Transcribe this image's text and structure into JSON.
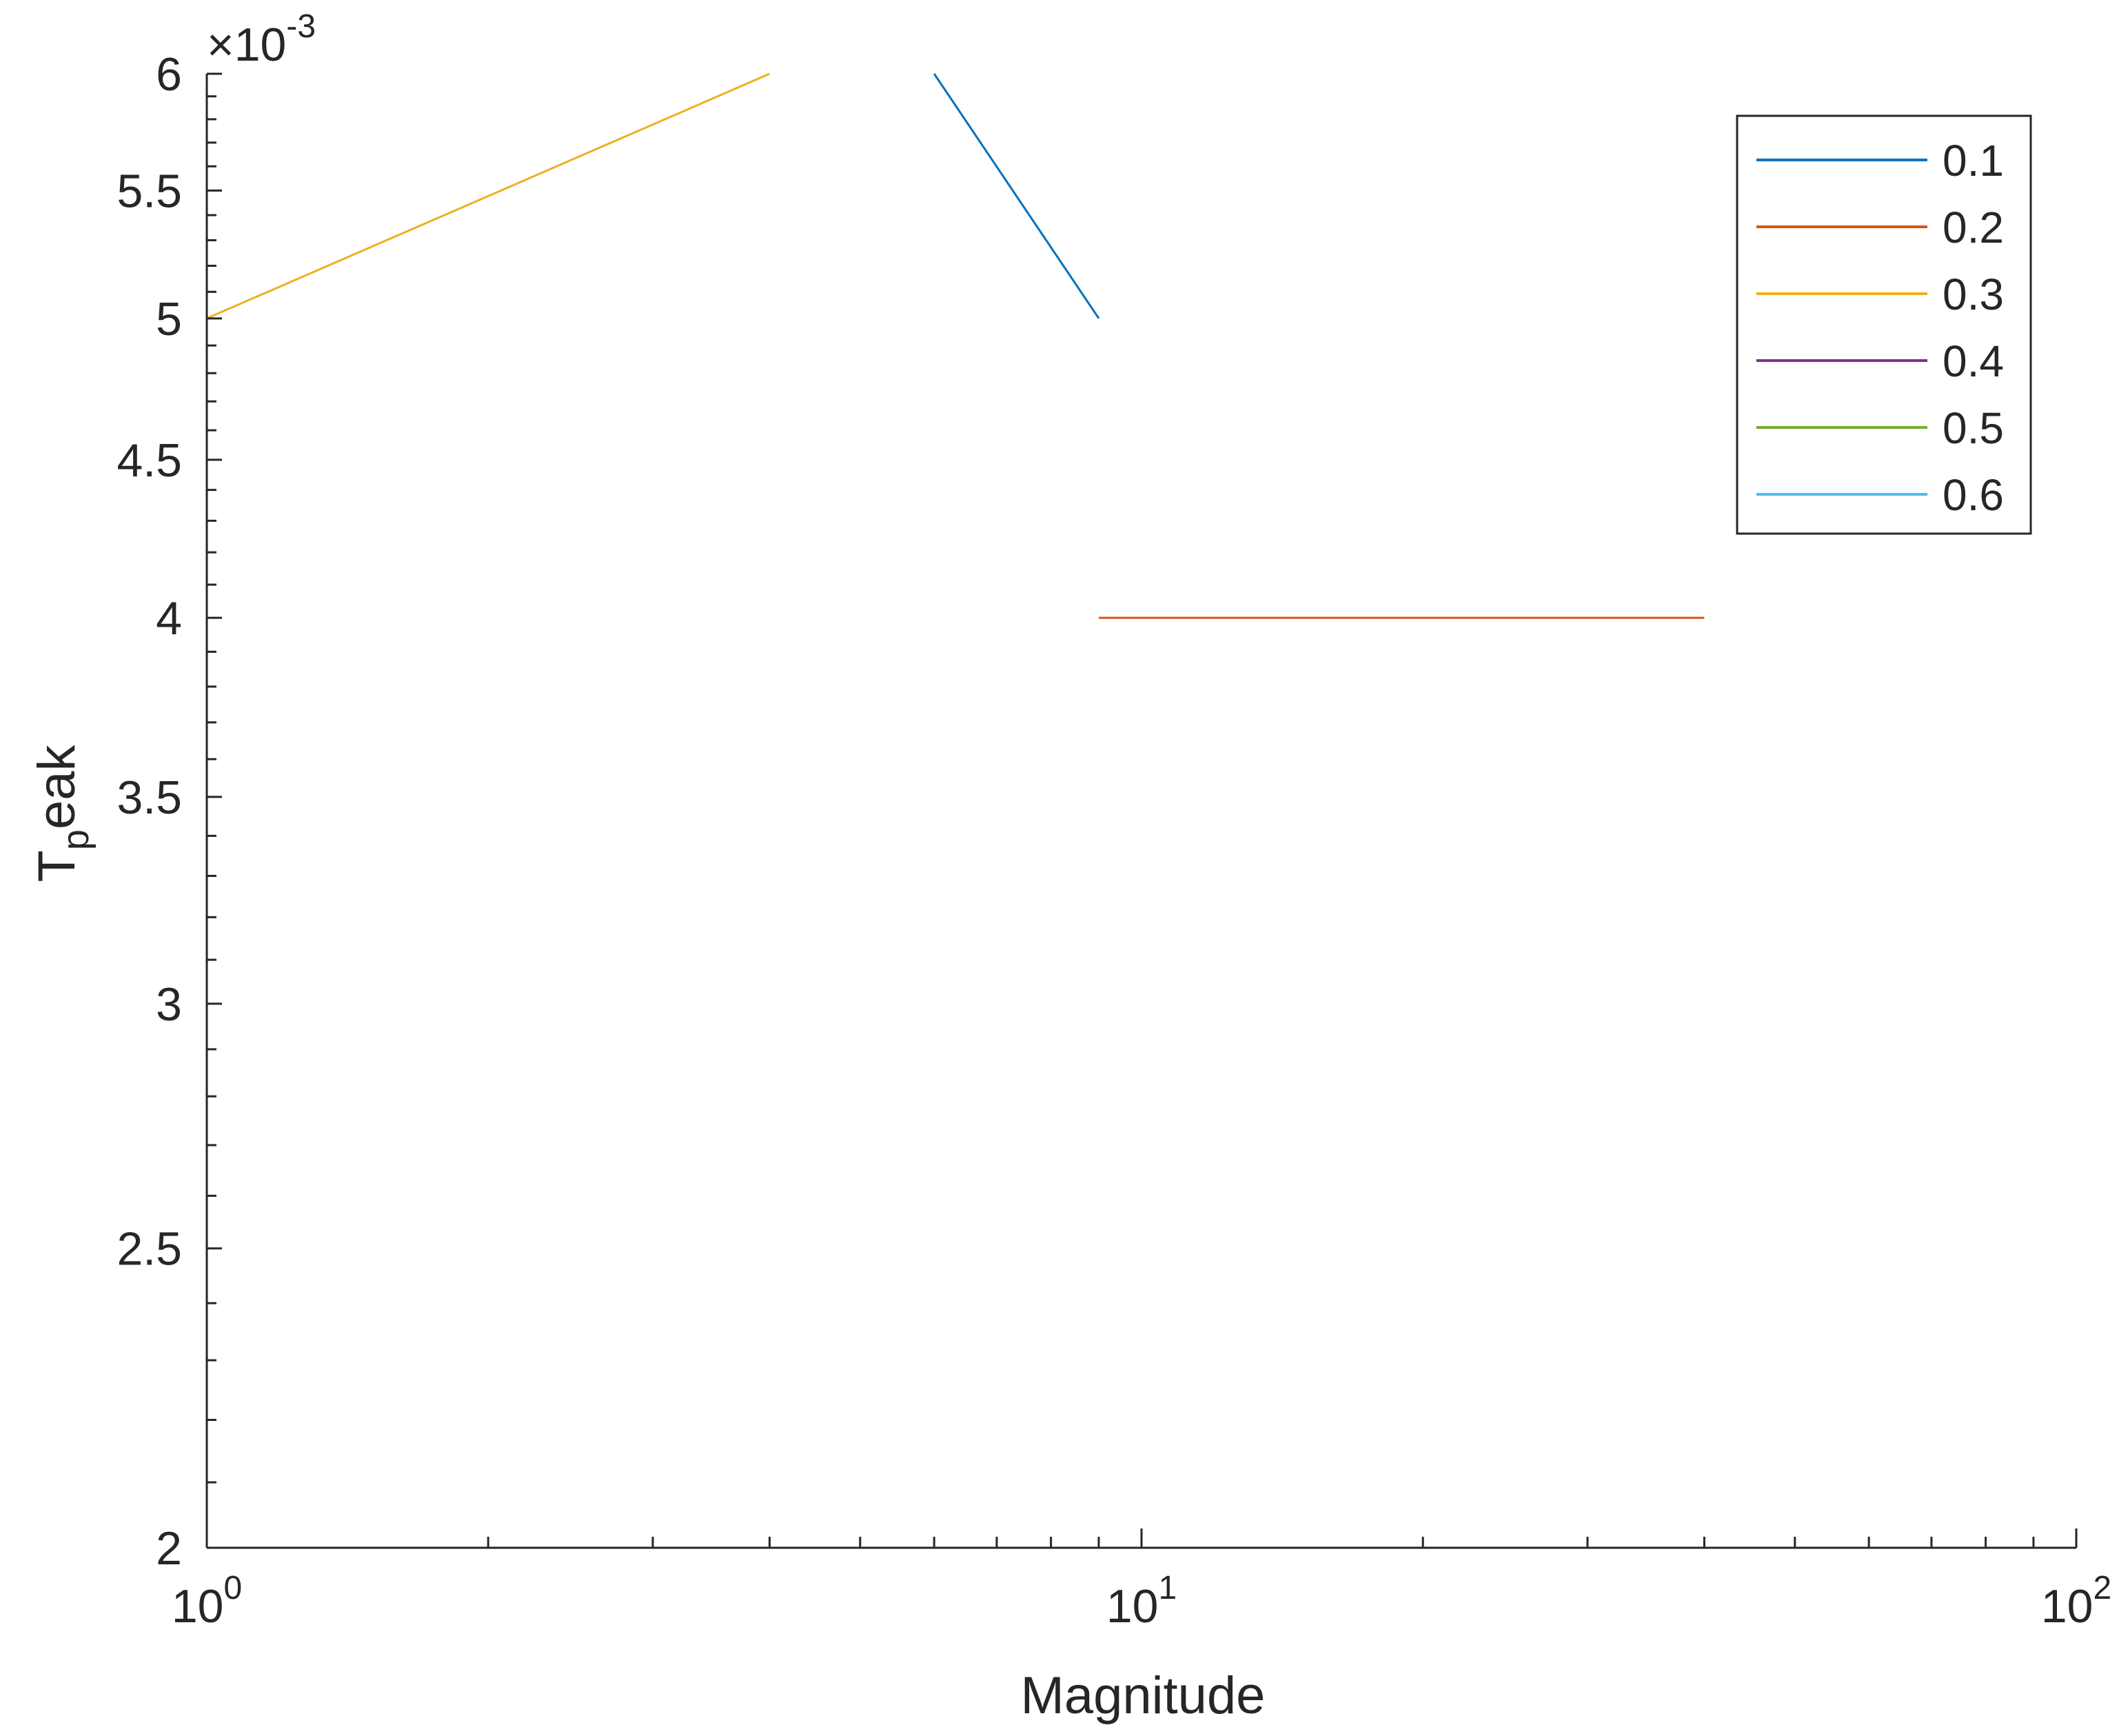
{
  "chart_data": {
    "type": "line",
    "xscale": "log",
    "yscale": "log",
    "xlim": [
      1,
      100
    ],
    "ylim": [
      0.002,
      0.006
    ],
    "xlabel": "Magnitude",
    "ylabel": {
      "main": "T",
      "sub": "p",
      "rest": "eak"
    },
    "y_multiplier": {
      "symbol": "×",
      "base": "10",
      "exponent": "-3"
    },
    "x_ticks": [
      {
        "value": 1,
        "base": "10",
        "exp": "0"
      },
      {
        "value": 10,
        "base": "10",
        "exp": "1"
      },
      {
        "value": 100,
        "base": "10",
        "exp": "2"
      }
    ],
    "y_ticks": [
      {
        "value": 0.002,
        "label": "2"
      },
      {
        "value": 0.0025,
        "label": "2.5"
      },
      {
        "value": 0.003,
        "label": "3"
      },
      {
        "value": 0.0035,
        "label": "3.5"
      },
      {
        "value": 0.004,
        "label": "4"
      },
      {
        "value": 0.0045,
        "label": "4.5"
      },
      {
        "value": 0.005,
        "label": "5"
      },
      {
        "value": 0.0055,
        "label": "5.5"
      },
      {
        "value": 0.006,
        "label": "6"
      }
    ],
    "grid": false,
    "legend_position": "top-right",
    "series": [
      {
        "name": "0.1",
        "color": "#0072BD",
        "points": [
          [
            6,
            0.006
          ],
          [
            9,
            0.005
          ]
        ]
      },
      {
        "name": "0.2",
        "color": "#D95319",
        "points": [
          [
            9,
            0.004
          ],
          [
            40,
            0.004
          ]
        ]
      },
      {
        "name": "0.3",
        "color": "#EDB120",
        "points": [
          [
            1,
            0.005
          ],
          [
            4,
            0.006
          ]
        ]
      },
      {
        "name": "0.4",
        "color": "#7E2F8E",
        "points": []
      },
      {
        "name": "0.5",
        "color": "#77AC30",
        "points": []
      },
      {
        "name": "0.6",
        "color": "#4DBEEE",
        "points": []
      }
    ]
  }
}
